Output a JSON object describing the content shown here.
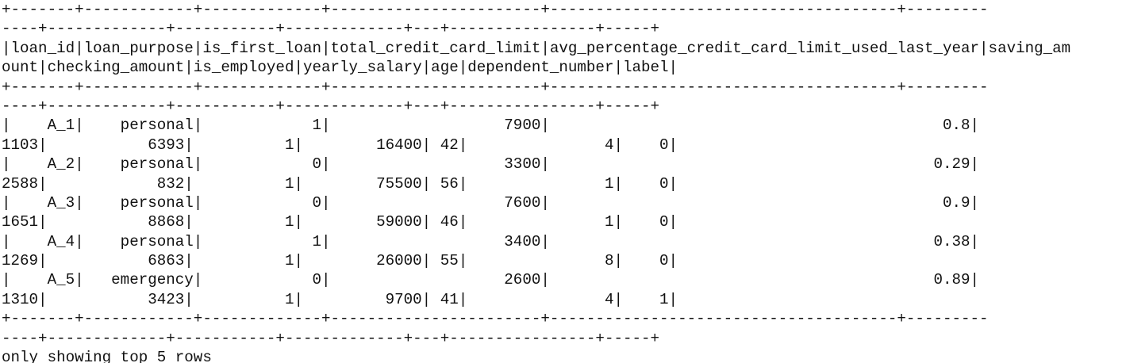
{
  "output": {
    "lines": [
      "+-------+------------+-------------+-----------------------+--------------------------------------+---------",
      "----+-------------+-----------+-------------+---+----------------+-----+",
      "|loan_id|loan_purpose|is_first_loan|total_credit_card_limit|avg_percentage_credit_card_limit_used_last_year|saving_am",
      "ount|checking_amount|is_employed|yearly_salary|age|dependent_number|label|",
      "+-------+------------+-------------+-----------------------+--------------------------------------+---------",
      "----+-------------+-----------+-------------+---+----------------+-----+",
      "|    A_1|    personal|            1|                   7900|                                           0.8|",
      "1103|           6393|          1|        16400| 42|               4|    0|",
      "|    A_2|    personal|            0|                   3300|                                          0.29|",
      "2588|            832|          1|        75500| 56|               1|    0|",
      "|    A_3|    personal|            0|                   7600|                                           0.9|",
      "1651|           8868|          1|        59000| 46|               1|    0|",
      "|    A_4|    personal|            1|                   3400|                                          0.38|",
      "1269|           6863|          1|        26000| 55|               8|    0|",
      "|    A_5|   emergency|            0|                   2600|                                          0.89|",
      "1310|           3423|          1|         9700| 41|               4|    1|",
      "+-------+------------+-------------+-----------------------+--------------------------------------+---------",
      "----+-------------+-----------+-------------+---+----------------+-----+",
      "only showing top 5 rows"
    ]
  }
}
